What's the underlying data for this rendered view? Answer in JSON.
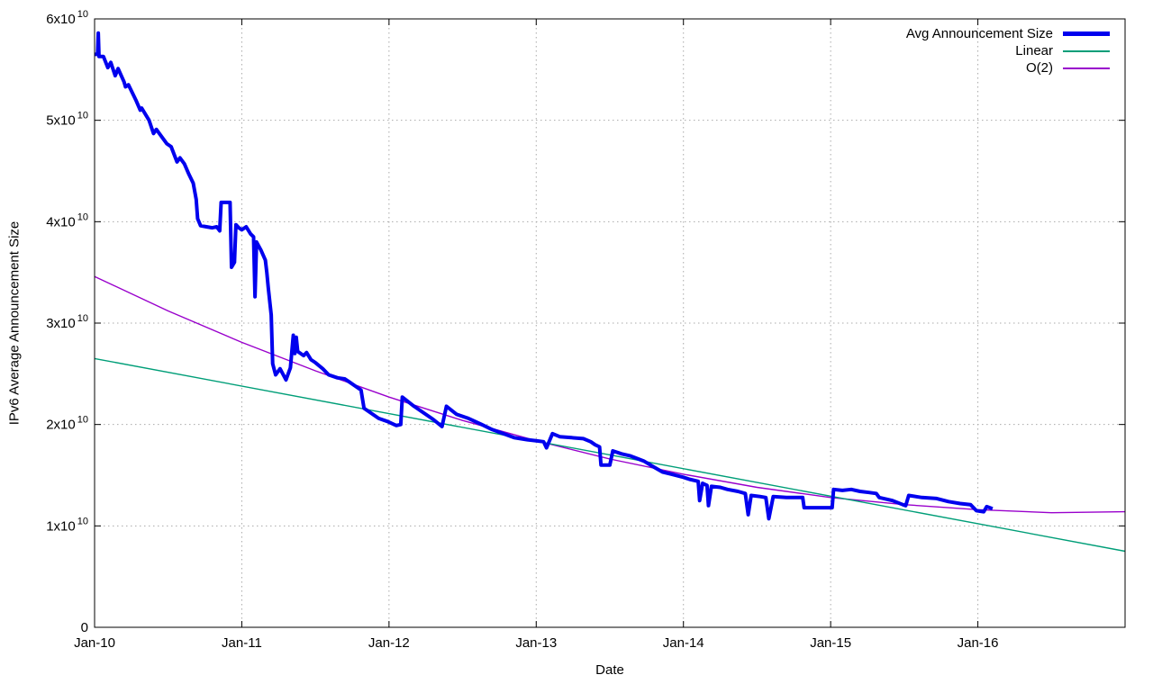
{
  "figure": {
    "background": "#ffffff",
    "border_color": "#000000"
  },
  "chart_data": {
    "type": "line",
    "title": "",
    "xlabel": "Date",
    "ylabel": "IPv6 Average Announcement Size",
    "legend_position": "top-right-inside",
    "grid": {
      "show": true,
      "style": "dotted",
      "color": "#a9a9a9"
    },
    "x_axis": {
      "unit": "years-since-Jan-2010",
      "min": 0,
      "max": 7,
      "ticks": [
        {
          "t": 0,
          "label": "Jan-10"
        },
        {
          "t": 1,
          "label": "Jan-11"
        },
        {
          "t": 2,
          "label": "Jan-12"
        },
        {
          "t": 3,
          "label": "Jan-13"
        },
        {
          "t": 4,
          "label": "Jan-14"
        },
        {
          "t": 5,
          "label": "Jan-15"
        },
        {
          "t": 6,
          "label": "Jan-16"
        }
      ]
    },
    "y_axis": {
      "value_scale": 10000000000,
      "min": 0,
      "max": 6,
      "ticks": [
        {
          "v": 0,
          "mantissa": "0",
          "exp": ""
        },
        {
          "v": 1,
          "mantissa": "1x10",
          "exp": "10"
        },
        {
          "v": 2,
          "mantissa": "2x10",
          "exp": "10"
        },
        {
          "v": 3,
          "mantissa": "3x10",
          "exp": "10"
        },
        {
          "v": 4,
          "mantissa": "4x10",
          "exp": "10"
        },
        {
          "v": 5,
          "mantissa": "5x10",
          "exp": "10"
        },
        {
          "v": 6,
          "mantissa": "6x10",
          "exp": "10"
        }
      ]
    },
    "series": [
      {
        "name": "Avg Announcement Size",
        "color": "#0000ee",
        "stroke_width": 4,
        "points": [
          [
            0,
            5.65
          ],
          [
            0.02,
            5.65
          ],
          [
            0.025,
            5.86
          ],
          [
            0.03,
            5.63
          ],
          [
            0.06,
            5.63
          ],
          [
            0.09,
            5.52
          ],
          [
            0.11,
            5.57
          ],
          [
            0.14,
            5.44
          ],
          [
            0.16,
            5.51
          ],
          [
            0.2,
            5.38
          ],
          [
            0.21,
            5.33
          ],
          [
            0.23,
            5.35
          ],
          [
            0.28,
            5.2
          ],
          [
            0.31,
            5.1
          ],
          [
            0.32,
            5.12
          ],
          [
            0.37,
            5.0
          ],
          [
            0.4,
            4.87
          ],
          [
            0.42,
            4.91
          ],
          [
            0.45,
            4.85
          ],
          [
            0.49,
            4.77
          ],
          [
            0.52,
            4.74
          ],
          [
            0.56,
            4.59
          ],
          [
            0.58,
            4.63
          ],
          [
            0.61,
            4.57
          ],
          [
            0.64,
            4.47
          ],
          [
            0.67,
            4.38
          ],
          [
            0.69,
            4.22
          ],
          [
            0.7,
            4.03
          ],
          [
            0.72,
            3.96
          ],
          [
            0.76,
            3.95
          ],
          [
            0.8,
            3.94
          ],
          [
            0.83,
            3.95
          ],
          [
            0.85,
            3.91
          ],
          [
            0.86,
            4.19
          ],
          [
            0.92,
            4.19
          ],
          [
            0.93,
            3.55
          ],
          [
            0.95,
            3.6
          ],
          [
            0.96,
            3.97
          ],
          [
            0.98,
            3.94
          ],
          [
            1.0,
            3.92
          ],
          [
            1.03,
            3.95
          ],
          [
            1.06,
            3.88
          ],
          [
            1.08,
            3.85
          ],
          [
            1.09,
            3.26
          ],
          [
            1.1,
            3.8
          ],
          [
            1.13,
            3.72
          ],
          [
            1.16,
            3.62
          ],
          [
            1.17,
            3.5
          ],
          [
            1.18,
            3.35
          ],
          [
            1.2,
            3.08
          ],
          [
            1.21,
            2.6
          ],
          [
            1.23,
            2.49
          ],
          [
            1.26,
            2.55
          ],
          [
            1.3,
            2.44
          ],
          [
            1.33,
            2.56
          ],
          [
            1.35,
            2.88
          ],
          [
            1.36,
            2.7
          ],
          [
            1.37,
            2.86
          ],
          [
            1.38,
            2.72
          ],
          [
            1.42,
            2.68
          ],
          [
            1.44,
            2.71
          ],
          [
            1.47,
            2.64
          ],
          [
            1.5,
            2.61
          ],
          [
            1.55,
            2.55
          ],
          [
            1.59,
            2.49
          ],
          [
            1.65,
            2.46
          ],
          [
            1.7,
            2.45
          ],
          [
            1.73,
            2.42
          ],
          [
            1.78,
            2.37
          ],
          [
            1.81,
            2.34
          ],
          [
            1.83,
            2.16
          ],
          [
            1.86,
            2.13
          ],
          [
            1.93,
            2.06
          ],
          [
            1.99,
            2.03
          ],
          [
            2.05,
            1.99
          ],
          [
            2.08,
            2.0
          ],
          [
            2.09,
            2.27
          ],
          [
            2.17,
            2.18
          ],
          [
            2.25,
            2.1
          ],
          [
            2.3,
            2.05
          ],
          [
            2.36,
            1.98
          ],
          [
            2.39,
            2.18
          ],
          [
            2.46,
            2.1
          ],
          [
            2.54,
            2.06
          ],
          [
            2.63,
            2.0
          ],
          [
            2.7,
            1.95
          ],
          [
            2.74,
            1.93
          ],
          [
            2.85,
            1.87
          ],
          [
            2.94,
            1.85
          ],
          [
            3.0,
            1.84
          ],
          [
            3.05,
            1.83
          ],
          [
            3.07,
            1.77
          ],
          [
            3.11,
            1.91
          ],
          [
            3.16,
            1.88
          ],
          [
            3.24,
            1.87
          ],
          [
            3.32,
            1.86
          ],
          [
            3.37,
            1.83
          ],
          [
            3.4,
            1.8
          ],
          [
            3.43,
            1.78
          ],
          [
            3.44,
            1.6
          ],
          [
            3.5,
            1.6
          ],
          [
            3.52,
            1.74
          ],
          [
            3.58,
            1.71
          ],
          [
            3.64,
            1.69
          ],
          [
            3.73,
            1.64
          ],
          [
            3.8,
            1.58
          ],
          [
            3.86,
            1.53
          ],
          [
            3.92,
            1.51
          ],
          [
            4.0,
            1.48
          ],
          [
            4.04,
            1.46
          ],
          [
            4.1,
            1.44
          ],
          [
            4.11,
            1.25
          ],
          [
            4.13,
            1.42
          ],
          [
            4.16,
            1.4
          ],
          [
            4.17,
            1.2
          ],
          [
            4.19,
            1.39
          ],
          [
            4.25,
            1.38
          ],
          [
            4.3,
            1.36
          ],
          [
            4.37,
            1.34
          ],
          [
            4.42,
            1.32
          ],
          [
            4.44,
            1.11
          ],
          [
            4.46,
            1.3
          ],
          [
            4.52,
            1.29
          ],
          [
            4.56,
            1.28
          ],
          [
            4.58,
            1.07
          ],
          [
            4.61,
            1.29
          ],
          [
            4.7,
            1.28
          ],
          [
            4.81,
            1.28
          ],
          [
            4.82,
            1.18
          ],
          [
            4.95,
            1.18
          ],
          [
            5.01,
            1.18
          ],
          [
            5.02,
            1.36
          ],
          [
            5.08,
            1.35
          ],
          [
            5.14,
            1.36
          ],
          [
            5.2,
            1.34
          ],
          [
            5.26,
            1.33
          ],
          [
            5.31,
            1.32
          ],
          [
            5.33,
            1.28
          ],
          [
            5.42,
            1.25
          ],
          [
            5.49,
            1.21
          ],
          [
            5.51,
            1.2
          ],
          [
            5.53,
            1.3
          ],
          [
            5.62,
            1.28
          ],
          [
            5.72,
            1.27
          ],
          [
            5.8,
            1.24
          ],
          [
            5.88,
            1.22
          ],
          [
            5.95,
            1.21
          ],
          [
            5.99,
            1.15
          ],
          [
            6.04,
            1.14
          ],
          [
            6.06,
            1.19
          ],
          [
            6.1,
            1.17
          ]
        ]
      },
      {
        "name": "Linear",
        "color": "#009e78",
        "stroke_width": 1.4,
        "points": [
          [
            0,
            2.65
          ],
          [
            7,
            0.75
          ]
        ]
      },
      {
        "name": "O(2)",
        "color": "#9900cc",
        "stroke_width": 1.4,
        "points": [
          [
            0,
            3.46
          ],
          [
            0.5,
            3.12
          ],
          [
            1,
            2.81
          ],
          [
            1.5,
            2.53
          ],
          [
            2,
            2.27
          ],
          [
            2.5,
            2.04
          ],
          [
            3,
            1.84
          ],
          [
            3.5,
            1.66
          ],
          [
            4,
            1.51
          ],
          [
            4.5,
            1.38
          ],
          [
            5,
            1.28
          ],
          [
            5.5,
            1.21
          ],
          [
            6,
            1.16
          ],
          [
            6.5,
            1.13
          ],
          [
            7,
            1.14
          ]
        ]
      }
    ]
  }
}
